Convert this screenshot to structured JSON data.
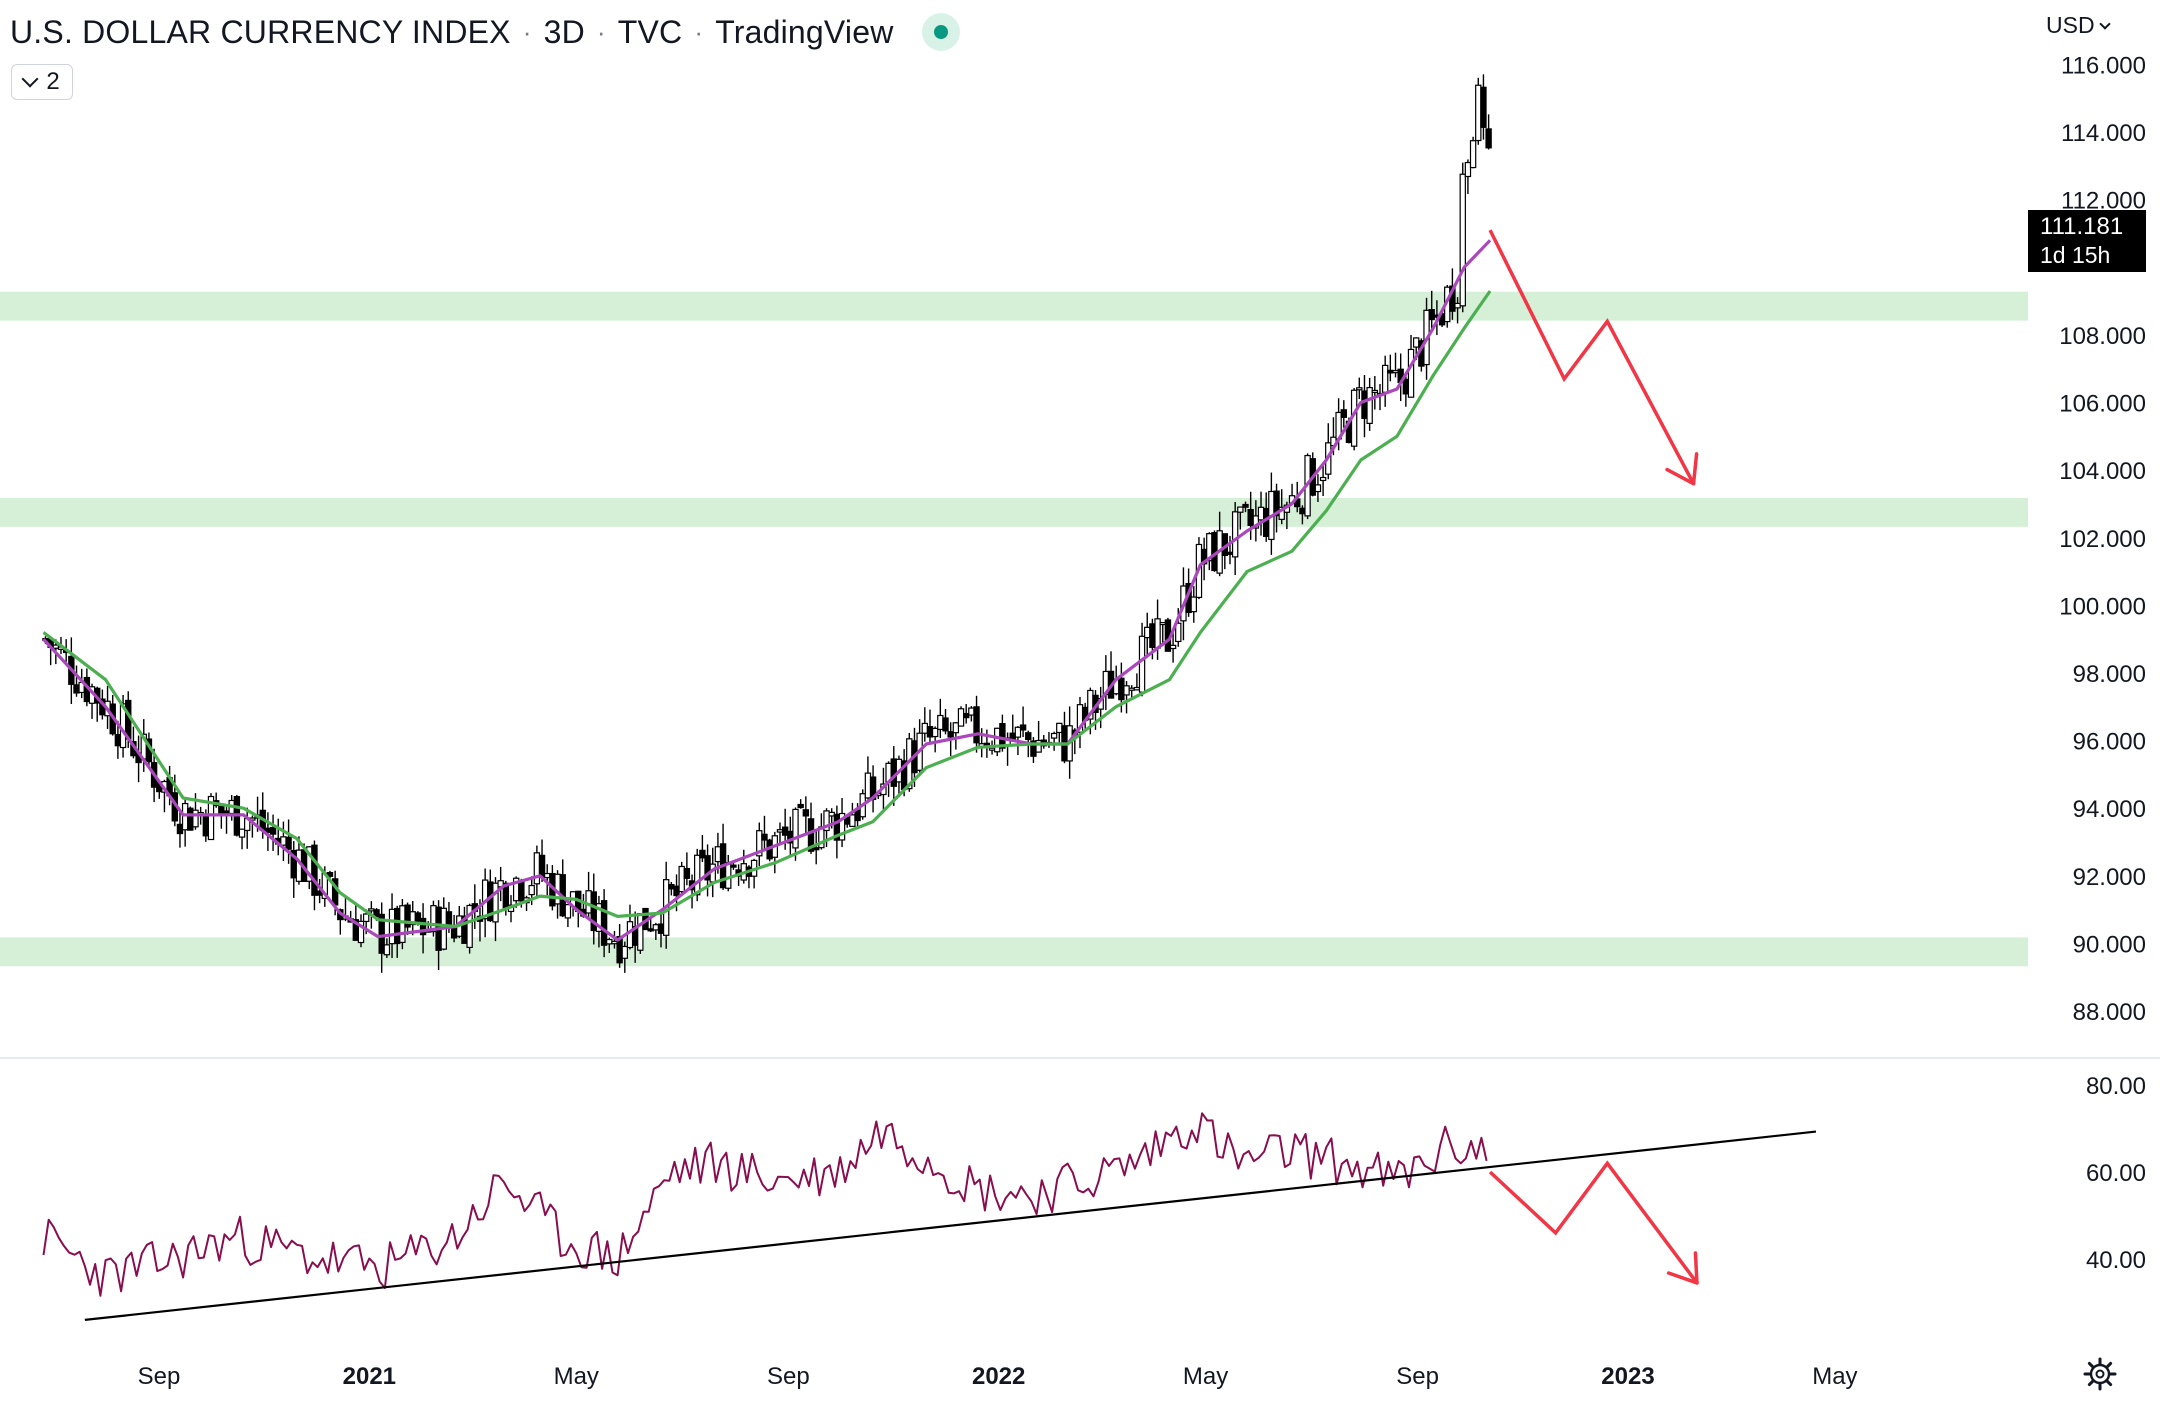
{
  "header": {
    "symbol_name": "U.S. DOLLAR CURRENCY INDEX",
    "interval": "3D",
    "exchange": "TVC",
    "source": "TradingView",
    "status_dot_color": "#089981",
    "indicator_toggle_count": "2"
  },
  "price_scale": {
    "currency": "USD",
    "last_price": "111.181",
    "countdown": "1d 15h"
  },
  "chart_data": [
    {
      "type": "candlestick",
      "panel": "price",
      "x_range": [
        "2020-06-26",
        "2023-06-01"
      ],
      "ylim": [
        86.5,
        116.6
      ],
      "y_ticks": [
        "116.000",
        "114.000",
        "112.000",
        "108.000",
        "106.000",
        "104.000",
        "102.000",
        "100.000",
        "98.000",
        "96.000",
        "94.000",
        "92.000",
        "90.000",
        "88.000"
      ],
      "grid": false,
      "candle_up_color": "#ffffff",
      "candle_down_color": "#000000",
      "series": [
        {
          "name": "",
          "kind": "ema",
          "color": "#ab47bc",
          "points": [
            [
              "2020-06-26",
              99.0
            ],
            [
              "2020-08-01",
              97.0
            ],
            [
              "2020-09-15",
              93.8
            ],
            [
              "2020-10-20",
              93.8
            ],
            [
              "2020-11-20",
              92.5
            ],
            [
              "2020-12-15",
              90.9
            ],
            [
              "2021-01-06",
              90.2
            ],
            [
              "2021-02-20",
              90.5
            ],
            [
              "2021-03-20",
              91.7
            ],
            [
              "2021-04-10",
              92.0
            ],
            [
              "2021-05-01",
              91.0
            ],
            [
              "2021-05-25",
              90.1
            ],
            [
              "2021-06-20",
              91.0
            ],
            [
              "2021-07-20",
              92.2
            ],
            [
              "2021-08-25",
              92.9
            ],
            [
              "2021-09-30",
              93.6
            ],
            [
              "2021-10-20",
              94.3
            ],
            [
              "2021-11-20",
              95.9
            ],
            [
              "2021-12-20",
              96.2
            ],
            [
              "2022-01-20",
              95.9
            ],
            [
              "2022-02-10",
              95.9
            ],
            [
              "2022-03-10",
              97.8
            ],
            [
              "2022-04-10",
              99.0
            ],
            [
              "2022-04-28",
              101.2
            ],
            [
              "2022-05-25",
              102.2
            ],
            [
              "2022-06-20",
              103.0
            ],
            [
              "2022-07-10",
              104.3
            ],
            [
              "2022-07-30",
              106.0
            ],
            [
              "2022-08-20",
              106.4
            ],
            [
              "2022-09-10",
              108.2
            ],
            [
              "2022-09-28",
              110.0
            ],
            [
              "2022-10-13",
              110.8
            ]
          ]
        },
        {
          "name": "",
          "kind": "ema",
          "color": "#4caf50",
          "points": [
            [
              "2020-06-26",
              99.2
            ],
            [
              "2020-08-01",
              97.8
            ],
            [
              "2020-09-15",
              94.3
            ],
            [
              "2020-10-20",
              94.0
            ],
            [
              "2020-11-20",
              93.1
            ],
            [
              "2020-12-15",
              91.5
            ],
            [
              "2021-01-06",
              90.7
            ],
            [
              "2021-02-20",
              90.5
            ],
            [
              "2021-03-20",
              91.0
            ],
            [
              "2021-04-10",
              91.4
            ],
            [
              "2021-05-01",
              91.3
            ],
            [
              "2021-05-25",
              90.8
            ],
            [
              "2021-06-20",
              90.9
            ],
            [
              "2021-07-20",
              91.8
            ],
            [
              "2021-08-25",
              92.4
            ],
            [
              "2021-09-30",
              93.2
            ],
            [
              "2021-10-20",
              93.6
            ],
            [
              "2021-11-20",
              95.2
            ],
            [
              "2021-12-20",
              95.8
            ],
            [
              "2022-01-20",
              95.9
            ],
            [
              "2022-02-10",
              95.9
            ],
            [
              "2022-03-10",
              97.0
            ],
            [
              "2022-04-10",
              97.8
            ],
            [
              "2022-04-28",
              99.2
            ],
            [
              "2022-05-25",
              101.0
            ],
            [
              "2022-06-20",
              101.6
            ],
            [
              "2022-07-10",
              102.8
            ],
            [
              "2022-07-30",
              104.3
            ],
            [
              "2022-08-20",
              105.0
            ],
            [
              "2022-09-10",
              106.8
            ],
            [
              "2022-09-28",
              108.2
            ],
            [
              "2022-10-13",
              109.3
            ]
          ]
        }
      ],
      "zones": [
        {
          "from": 108.6,
          "to": 109.1,
          "color": "#d5f0d7"
        },
        {
          "from": 102.5,
          "to": 103.0,
          "color": "#d5f0d7"
        },
        {
          "from": 89.5,
          "to": 90.0,
          "color": "#d5f0d7"
        }
      ],
      "projection": {
        "color": "#f23645",
        "points": [
          [
            "2022-10-13",
            111.1
          ],
          [
            "2022-11-25",
            106.7
          ],
          [
            "2022-12-20",
            108.4
          ],
          [
            "2023-02-08",
            103.6
          ]
        ]
      }
    },
    {
      "type": "line",
      "panel": "oscillator",
      "ylim": [
        26,
        83
      ],
      "y_ticks": [
        "80.00",
        "60.00",
        "40.00"
      ],
      "series": [
        {
          "name": "",
          "color": "#880e4f"
        }
      ],
      "trendline": {
        "color": "#000000",
        "points": [
          [
            "2020-07-20",
            26.0
          ],
          [
            "2023-04-20",
            69.3
          ]
        ]
      },
      "projection": {
        "color": "#f23645",
        "points": [
          [
            "2022-10-13",
            60.0
          ],
          [
            "2022-11-20",
            46.0
          ],
          [
            "2022-12-20",
            62.0
          ],
          [
            "2023-02-10",
            34.5
          ]
        ]
      }
    }
  ],
  "x_axis": {
    "labels": [
      {
        "text": "Sep",
        "date": "2020-09-01",
        "bold": false
      },
      {
        "text": "2021",
        "date": "2021-01-01",
        "bold": true
      },
      {
        "text": "May",
        "date": "2021-05-01",
        "bold": false
      },
      {
        "text": "Sep",
        "date": "2021-09-01",
        "bold": false
      },
      {
        "text": "2022",
        "date": "2022-01-01",
        "bold": true
      },
      {
        "text": "May",
        "date": "2022-05-01",
        "bold": false
      },
      {
        "text": "Sep",
        "date": "2022-09-01",
        "bold": false
      },
      {
        "text": "2023",
        "date": "2023-01-01",
        "bold": true
      },
      {
        "text": "May",
        "date": "2023-05-01",
        "bold": false
      }
    ]
  }
}
